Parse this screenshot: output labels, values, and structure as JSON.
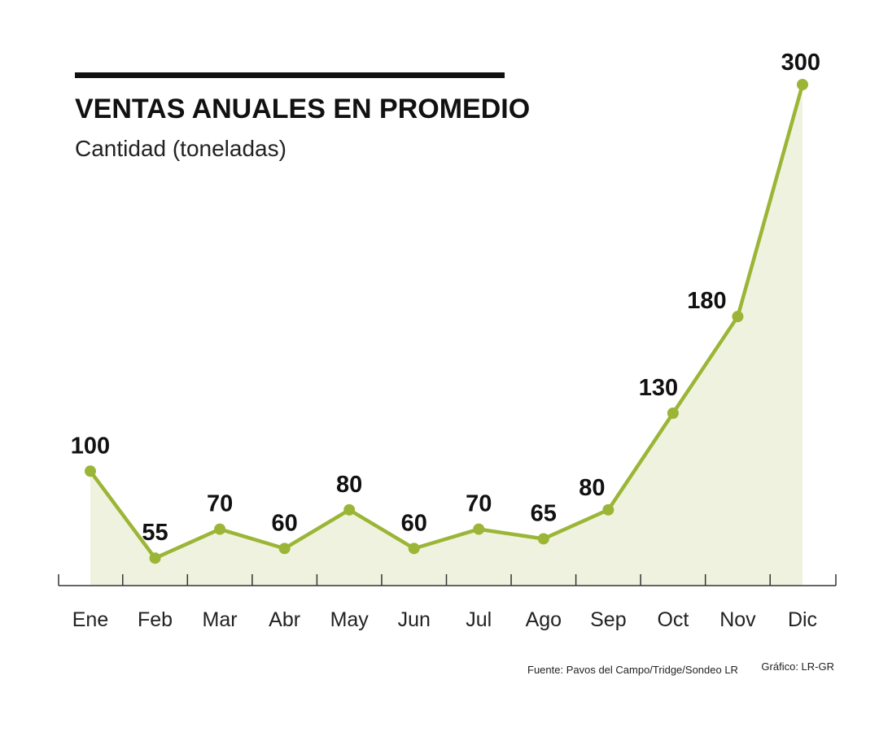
{
  "chart_data": {
    "type": "area",
    "title": "VENTAS ANUALES EN PROMEDIO",
    "subtitle": "Cantidad (toneladas)",
    "categories": [
      "Ene",
      "Feb",
      "Mar",
      "Abr",
      "May",
      "Jun",
      "Jul",
      "Ago",
      "Sep",
      "Oct",
      "Nov",
      "Dic"
    ],
    "values": [
      100,
      55,
      70,
      60,
      80,
      60,
      70,
      65,
      80,
      130,
      180,
      300
    ],
    "value_labels": [
      "100",
      "55",
      "70",
      "60",
      "80",
      "60",
      "70",
      "65",
      "80",
      "130",
      "180",
      "300"
    ],
    "xlabel": "",
    "ylabel": "",
    "ylim": [
      45,
      300
    ],
    "grid": false,
    "source": "Fuente: Pavos del Campo/Tridge/Sondeo LR",
    "credit": "Gráfico: LR-GR"
  },
  "colors": {
    "line": "#9bb536",
    "fill": "#eff2de",
    "title_bar": "#111111",
    "axis": "#333333",
    "text": "#111111"
  }
}
